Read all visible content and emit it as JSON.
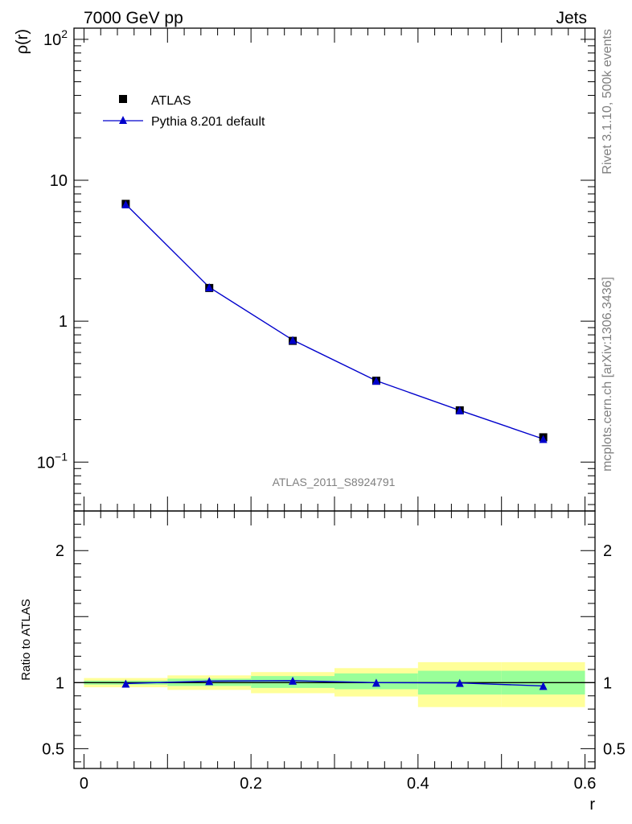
{
  "header": {
    "left_title": "7000 GeV pp",
    "right_title": "Jets"
  },
  "side_text": {
    "rivet": "Rivet 3.1.10,  500k events",
    "mcplots": "mcplots.cern.ch [arXiv:1306.3436]"
  },
  "chart_data": [
    {
      "type": "scatter",
      "title": "",
      "ylabel": "ρ(r)",
      "xlabel": "",
      "yscale": "log",
      "xlim": [
        -0.012,
        0.612
      ],
      "ylim": [
        0.045,
        120
      ],
      "annotation": "ATLAS_2011_S8924791",
      "legend_position": "top-left",
      "y_tick_labels": [
        {
          "value": 0.1,
          "base": "10",
          "exp": "−1"
        },
        {
          "value": 1,
          "base": "1",
          "exp": ""
        },
        {
          "value": 10,
          "base": "10",
          "exp": ""
        },
        {
          "value": 100,
          "base": "10",
          "exp": "2"
        }
      ],
      "series": [
        {
          "name": "ATLAS",
          "marker": "square",
          "color": "#000000",
          "x": [
            0.05,
            0.15,
            0.25,
            0.35,
            0.45,
            0.55
          ],
          "y": [
            6.8,
            1.72,
            0.725,
            0.378,
            0.233,
            0.15
          ]
        },
        {
          "name": "Pythia 8.201 default",
          "marker": "triangle",
          "color": "#0000cc",
          "x": [
            0.05,
            0.15,
            0.25,
            0.35,
            0.45,
            0.55
          ],
          "y": [
            6.75,
            1.74,
            0.735,
            0.378,
            0.233,
            0.146
          ]
        }
      ]
    },
    {
      "type": "line",
      "title": "",
      "ylabel": "Ratio to ATLAS",
      "xlabel": "r",
      "xlim": [
        -0.012,
        0.612
      ],
      "ylim": [
        0.35,
        2.3
      ],
      "x_tick_labels": [
        {
          "value": 0,
          "label": "0"
        },
        {
          "value": 0.2,
          "label": "0.2"
        },
        {
          "value": 0.4,
          "label": "0.4"
        },
        {
          "value": 0.6,
          "label": "0.6"
        }
      ],
      "y_tick_labels": [
        {
          "value": 0.5,
          "label": "0.5"
        },
        {
          "value": 1,
          "label": "1"
        },
        {
          "value": 2,
          "label": "2"
        }
      ],
      "bands": {
        "bin_edges": [
          0.0,
          0.1,
          0.2,
          0.3,
          0.4,
          0.5,
          0.6
        ],
        "stat_color": "#99ff99",
        "total_color": "#ffff99",
        "stat": [
          [
            0.985,
            1.015
          ],
          [
            0.975,
            1.03
          ],
          [
            0.96,
            1.05
          ],
          [
            0.95,
            1.07
          ],
          [
            0.91,
            1.09
          ],
          [
            0.91,
            1.09
          ]
        ],
        "total": [
          [
            0.965,
            1.035
          ],
          [
            0.945,
            1.055
          ],
          [
            0.92,
            1.08
          ],
          [
            0.895,
            1.11
          ],
          [
            0.815,
            1.155
          ],
          [
            0.815,
            1.155
          ]
        ]
      },
      "series": [
        {
          "name": "Pythia 8.201 default",
          "color": "#0000cc",
          "x": [
            0.05,
            0.15,
            0.25,
            0.35,
            0.45,
            0.55
          ],
          "y": [
            0.993,
            1.012,
            1.015,
            1.0,
            0.998,
            0.975
          ]
        }
      ]
    }
  ]
}
